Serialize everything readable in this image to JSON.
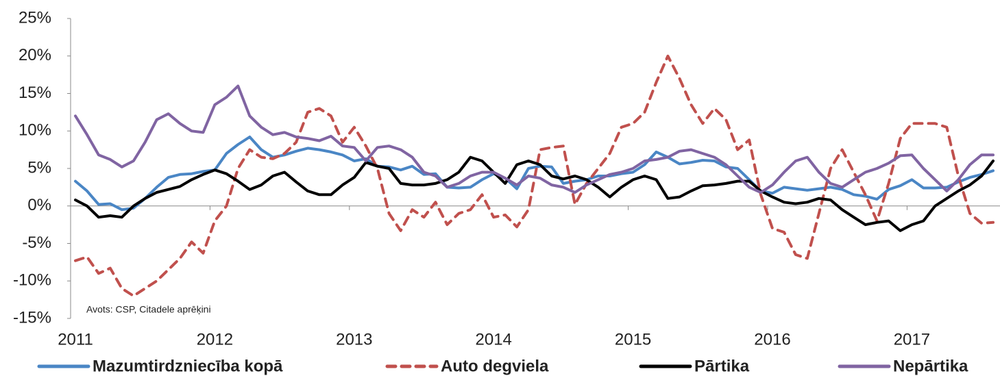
{
  "chart_data": {
    "type": "line",
    "categories": [
      "2011",
      null,
      null,
      null,
      null,
      null,
      null,
      null,
      null,
      null,
      null,
      null,
      "2012",
      null,
      null,
      null,
      null,
      null,
      null,
      null,
      null,
      null,
      null,
      null,
      "2013",
      null,
      null,
      null,
      null,
      null,
      null,
      null,
      null,
      null,
      null,
      null,
      "2014",
      null,
      null,
      null,
      null,
      null,
      null,
      null,
      null,
      null,
      null,
      null,
      "2015",
      null,
      null,
      null,
      null,
      null,
      null,
      null,
      null,
      null,
      null,
      null,
      "2016",
      null,
      null,
      null,
      null,
      null,
      null,
      null,
      null,
      null,
      null,
      null,
      "2017",
      null,
      null,
      null,
      null,
      null,
      null,
      null
    ],
    "series": [
      {
        "name": "Mazumtirdzniecība kopā",
        "color": "#4a86c5",
        "style": "solid",
        "values": [
          3.3,
          2,
          0.2,
          0.3,
          -0.5,
          -0.3,
          1,
          2.5,
          3.8,
          4.2,
          4.3,
          4.6,
          4.8,
          7,
          8.2,
          9.2,
          7.5,
          6.5,
          6.8,
          7.3,
          7.7,
          7.5,
          7.2,
          6.8,
          6,
          6.3,
          5.3,
          5.2,
          4.8,
          5.3,
          4.2,
          4.3,
          2.5,
          2.4,
          2.5,
          3.5,
          4.3,
          3.7,
          2.3,
          5,
          5.3,
          5.2,
          3,
          3.3,
          3.5,
          4,
          4,
          4.3,
          4.5,
          5.5,
          7.2,
          6.5,
          5.6,
          5.8,
          6.1,
          6,
          5.2,
          5,
          3.5,
          2,
          1.7,
          2.5,
          2.3,
          2.1,
          2.3,
          2.5,
          2.2,
          1.5,
          1.3,
          0.9,
          2.2,
          2.7,
          3.5,
          2.4,
          2.4,
          2.5,
          3.2,
          3.8,
          4.2,
          4.7
        ]
      },
      {
        "name": "Auto degviela",
        "color": "#c0504d",
        "style": "dashed",
        "values": [
          -7.3,
          -6.8,
          -9,
          -8.3,
          -11,
          -12,
          -11,
          -10,
          -8.5,
          -7,
          -4.8,
          -6.3,
          -2,
          0,
          5,
          7.5,
          6.5,
          6.3,
          7,
          8.5,
          12.5,
          13,
          12,
          8.5,
          10.5,
          8,
          5,
          -1,
          -3.3,
          -0.5,
          -1.5,
          0.5,
          -2.5,
          -1,
          -0.5,
          1.5,
          -1.5,
          -1.2,
          -2.8,
          -0.5,
          7.5,
          7.8,
          8,
          0.2,
          3,
          5,
          7,
          10.5,
          11,
          12.5,
          16.5,
          20,
          17,
          13.5,
          11,
          13,
          11.5,
          7.5,
          8.8,
          1.5,
          -3,
          -3.5,
          -6.5,
          -7,
          -1,
          5,
          7.5,
          4.5,
          1.5,
          -2,
          3,
          9,
          11,
          11,
          11,
          10.5,
          4,
          -1,
          -2.3,
          -2.2
        ]
      },
      {
        "name": "Pārtika",
        "color": "#000000",
        "style": "solid",
        "values": [
          0.8,
          0,
          -1.5,
          -1.3,
          -1.5,
          0,
          1,
          1.8,
          2.2,
          2.6,
          3.5,
          4.2,
          4.8,
          4.3,
          3.3,
          2.2,
          2.8,
          4,
          4.5,
          3.2,
          2,
          1.5,
          1.5,
          2.8,
          3.8,
          5.8,
          5.3,
          5,
          3,
          2.8,
          2.8,
          3,
          3.5,
          4.5,
          6.5,
          6,
          4.5,
          3,
          5.5,
          6,
          5.5,
          4,
          3.6,
          4,
          3.5,
          2.5,
          1.2,
          2.5,
          3.5,
          4,
          3.5,
          1,
          1.2,
          2,
          2.7,
          2.8,
          3,
          3.3,
          3.3,
          2,
          1.2,
          0.5,
          0.3,
          0.5,
          1,
          0.8,
          -0.5,
          -1.5,
          -2.5,
          -2.2,
          -2,
          -3.3,
          -2.5,
          -2,
          0,
          1,
          2,
          2.8,
          4,
          6
        ]
      },
      {
        "name": "Nepārtika",
        "color": "#8064a2",
        "style": "solid",
        "values": [
          12,
          9.5,
          6.8,
          6.2,
          5.2,
          6,
          8.5,
          11.5,
          12.3,
          11,
          10,
          9.8,
          13.5,
          14.5,
          16,
          12,
          10.5,
          9.5,
          9.8,
          9.2,
          9,
          8.7,
          9.3,
          8,
          7.8,
          6,
          7.8,
          8,
          7.5,
          6.5,
          4.5,
          4,
          2.5,
          3,
          4,
          4.5,
          4.5,
          3.7,
          2.8,
          4,
          3.7,
          2.8,
          2.5,
          1.8,
          2.8,
          3.5,
          4.2,
          4.5,
          5,
          6,
          6.2,
          6.5,
          7.3,
          7.5,
          7,
          6.5,
          5.5,
          4,
          2.5,
          1.8,
          2.8,
          4.5,
          6,
          6.5,
          4.5,
          3,
          2.5,
          3.5,
          4.5,
          5,
          5.7,
          6.7,
          6.8,
          5,
          3.5,
          2,
          3.5,
          5.5,
          6.8,
          6.8
        ]
      }
    ],
    "ylim": [
      -15,
      25
    ],
    "yticks": [
      {
        "value": -15,
        "label": "-15%"
      },
      {
        "value": -10,
        "label": "-10%"
      },
      {
        "value": -5,
        "label": "-5%"
      },
      {
        "value": 0,
        "label": "0%"
      },
      {
        "value": 5,
        "label": "5%"
      },
      {
        "value": 10,
        "label": "10%"
      },
      {
        "value": 15,
        "label": "15%"
      },
      {
        "value": 20,
        "label": "20%"
      },
      {
        "value": 25,
        "label": "25%"
      }
    ],
    "annotation": "Avots: CSP, Citadele aprēķini",
    "grid": false,
    "legend": "bottom"
  }
}
